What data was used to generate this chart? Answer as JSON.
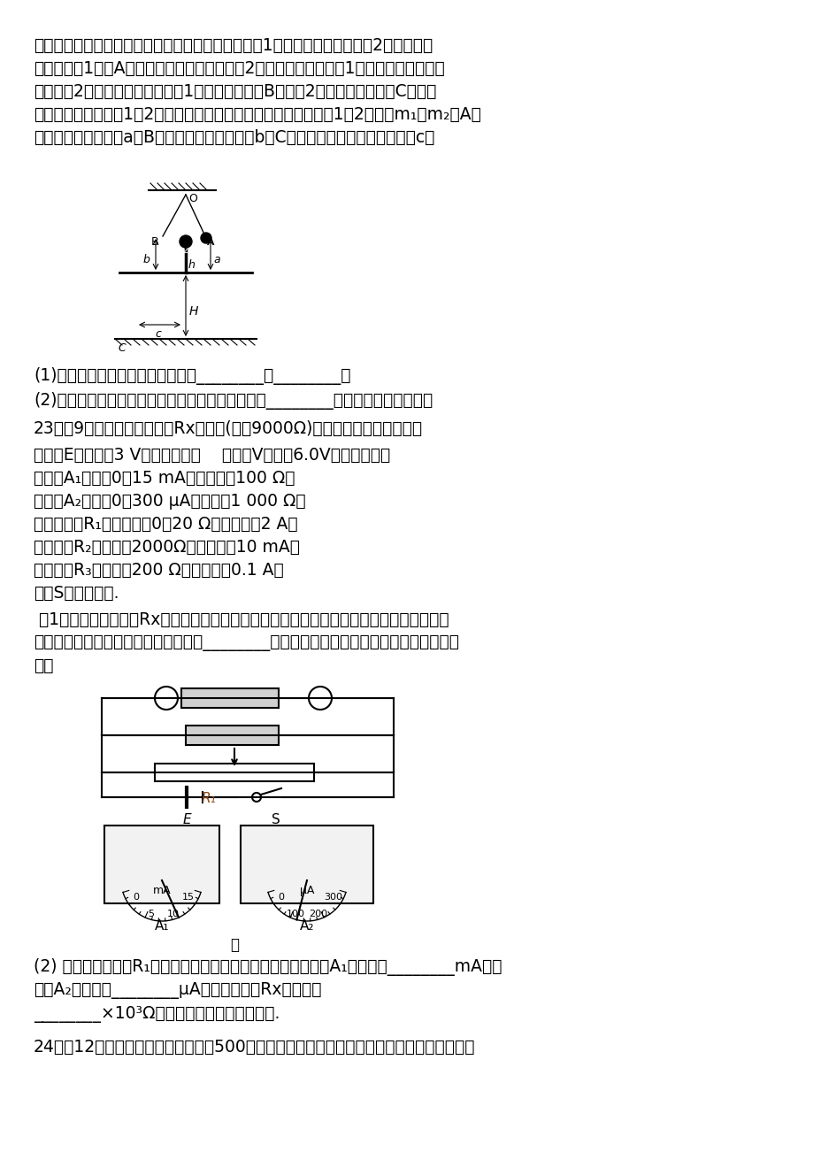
{
  "bg_color": "#ffffff",
  "text_color": "#000000",
  "figsize": [
    9.2,
    13.02
  ],
  "dpi": 100,
  "paragraphs": [
    "的边沿有一竖直立柱。实验时，调节悬点，使弹性球1静止时恰与立柱上的球2接触且两球",
    "等高。将球1拉到A点，并使之静止，同时把球2放在立柱上。释放球1，当它摆到悬点正下",
    "方时与球2发生对心碰撞，碰后球1向左最远可摆到B点，球2落到水平地面上的C点。测",
    "出有关数据即可验证1、2两球碰撞时动量守恒。现已测出两弹性球1、2的质量m₁、m₂，A点",
    "离水平桌面的距离为a，B点离水平桌面的距离为b，C点与桌子边沿间的水平距离为c。"
  ],
  "q1_text": "(1)要完成实验，还需要测量的量是________和________。",
  "q2_text": "(2)根据测量的数据，该实验中动量守恒的表达式为________。（忽略小球的大小）",
  "q23_header": "23．（9分）为测定待测电阻Rx的阻值(约为9000Ω)，实验室提供如下器材：",
  "equipment_lines": [
    "电池组E：电动势3 V，内阻不计；    电压表V：量程6.0V，内阻很大；",
    "电流表A₁：量程0～15 mA，内阻约为100 Ω；",
    "电流表A₂：量程0～300 μA，内阻为1 000 Ω；",
    "滑动变阻器R₁：阻值范围0～20 Ω，额定电流2 A；",
    "定值电阻R₂：阻值为2000Ω，额定电流10 mA；",
    "定值电阻R₃：阻值为200 Ω，额定电流0.1 A；",
    "开关S、导线若干."
  ],
  "q23_sub1_lines": [
    " （1）为了准确地测量Rx的阻值，某同学已经设计出了大致的电路，但电表和电阻代号还未",
    "填入，请你帮他将正确的电表代号填入________内，并将正确的电阻代号填在对应电阻的下",
    "方："
  ],
  "q23_sub2_lines": [
    "(2) 调节滑动变阻器R₁，两表的示数如图乙所示，可读出电流表A₁的示数是________mA，电",
    "流表A₂的示数是________μA，则待测电阻Rx的阻值是",
    "________×10³Ω（计算结果保留一位小数）."
  ],
  "q24_text": "24．（12分）在短道速滑世锦赛女子500米决赛中，接连有选手意外摔倒，由于在短道速滑比"
}
